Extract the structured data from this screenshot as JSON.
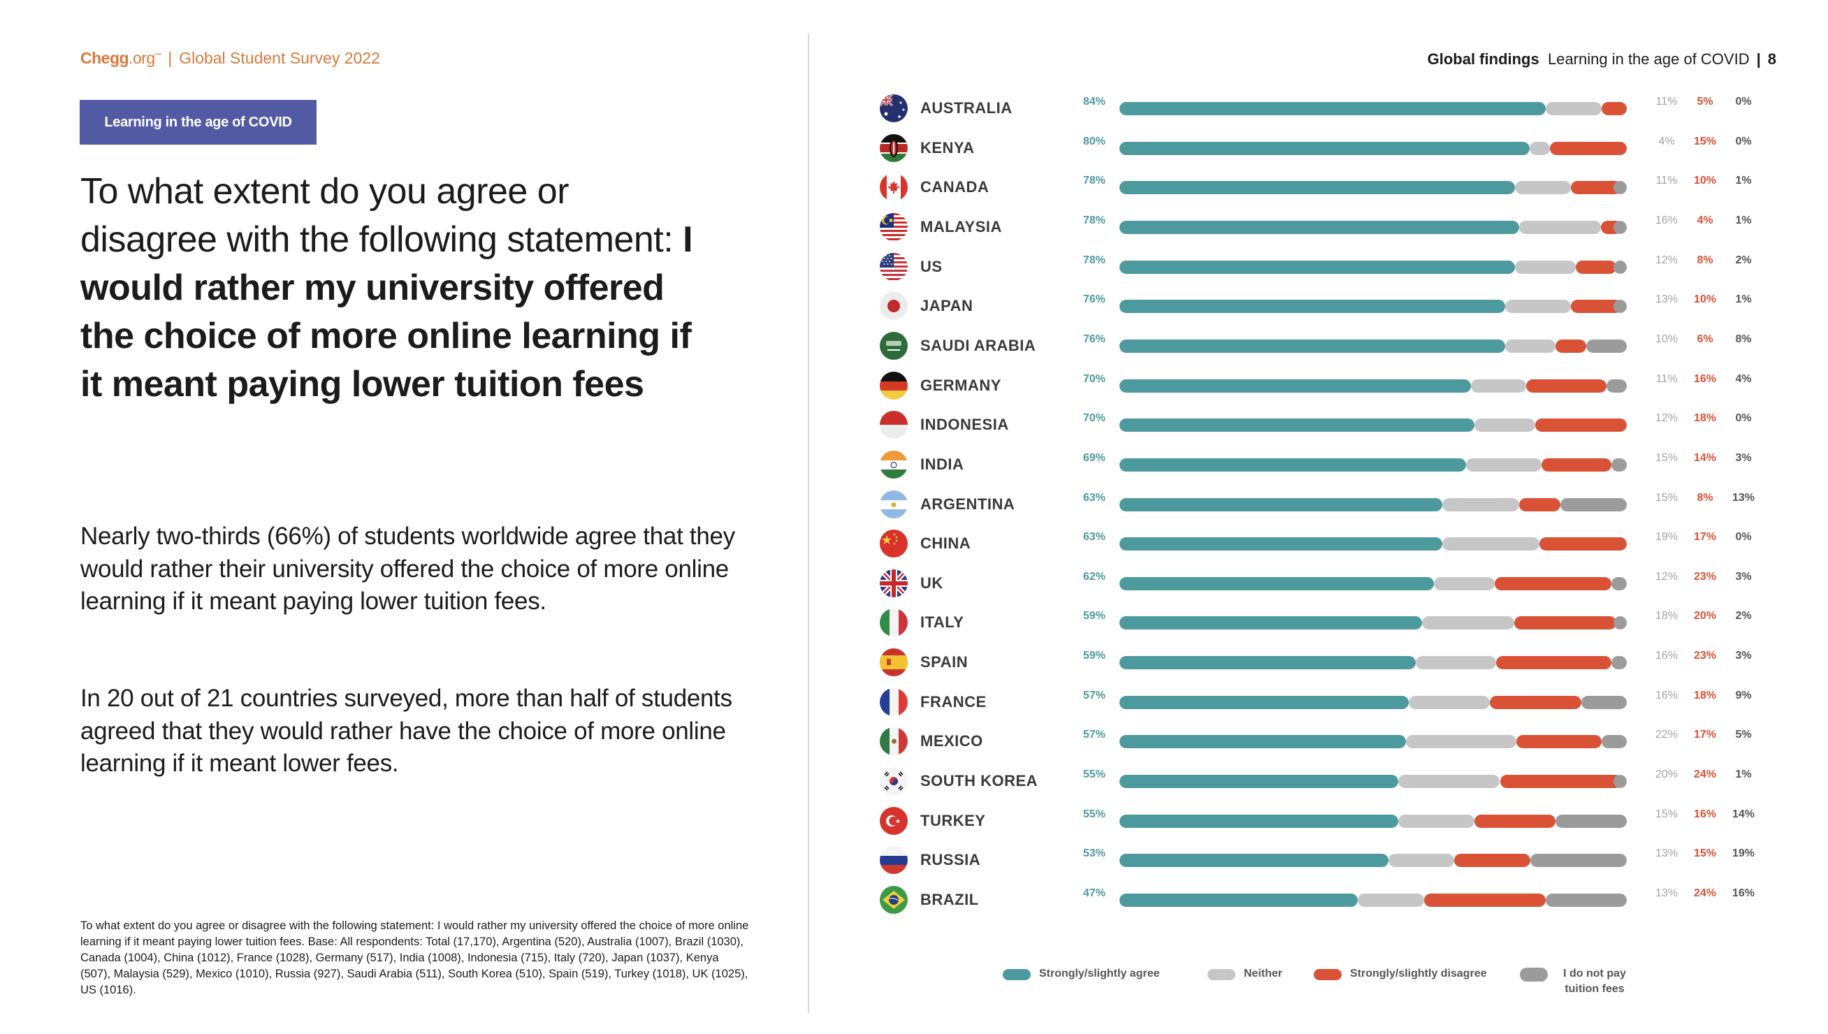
{
  "header_left": {
    "brand": "Chegg",
    "brand_suffix": ".org",
    "trademark": "™",
    "separator": "|",
    "title": "Global Student Survey 2022"
  },
  "section_tag": "Learning in the age of COVID",
  "heading": {
    "lead": "To what extent do you agree or disagree with the following statement: ",
    "emphasis": "I would rather my university offered the choice of more online learning if it meant paying lower tuition fees"
  },
  "paragraphs": [
    "Nearly two-thirds (66%) of students worldwide agree that they would rather their university offered the choice of more online learning if it meant paying lower tuition fees.",
    "In 20 out of 21 countries surveyed, more than half of students agreed that they would rather have the choice of more online learning if it meant lower fees."
  ],
  "footnote": "To what extent do you agree or disagree with the following statement: I would rather my university offered the choice of more online learning if it meant paying lower tuition fees. Base: All respondents: Total (17,170), Argentina (520), Australia (1007), Brazil (1030), Canada (1004), China (1012), France (1028), Germany (517), India (1008), Indonesia (715), Italy (720), Japan (1037), Kenya (507), Malaysia (529), Mexico (1010), Russia (927), Saudi Arabia (511), South Korea (510), Spain (519), Turkey (1018), UK (1025), US (1016).",
  "header_right": {
    "section": "Global findings",
    "subtitle": "Learning in the age of COVID",
    "separator": "|",
    "page_number": "8"
  },
  "colors": {
    "agree": "#4c9a9e",
    "neither": "#c6c6c6",
    "disagree": "#d95236",
    "notpay": "#9b9b9b",
    "brand_orange": "#d8793a",
    "tag_purple": "#525aa3"
  },
  "chart_data": {
    "type": "bar",
    "stacked": true,
    "orientation": "horizontal",
    "title": "",
    "xlabel": "",
    "ylabel": "",
    "xlim": [
      0,
      100
    ],
    "unit": "%",
    "legend_position": "bottom",
    "categories": [
      "AUSTRALIA",
      "KENYA",
      "CANADA",
      "MALAYSIA",
      "US",
      "JAPAN",
      "SAUDI ARABIA",
      "GERMANY",
      "INDONESIA",
      "INDIA",
      "ARGENTINA",
      "CHINA",
      "UK",
      "ITALY",
      "SPAIN",
      "FRANCE",
      "MEXICO",
      "SOUTH KOREA",
      "TURKEY",
      "RUSSIA",
      "BRAZIL"
    ],
    "flags": [
      "australia-flag-icon",
      "kenya-flag-icon",
      "canada-flag-icon",
      "malaysia-flag-icon",
      "us-flag-icon",
      "japan-flag-icon",
      "saudi-arabia-flag-icon",
      "germany-flag-icon",
      "indonesia-flag-icon",
      "india-flag-icon",
      "argentina-flag-icon",
      "china-flag-icon",
      "uk-flag-icon",
      "italy-flag-icon",
      "spain-flag-icon",
      "france-flag-icon",
      "mexico-flag-icon",
      "south-korea-flag-icon",
      "turkey-flag-icon",
      "russia-flag-icon",
      "brazil-flag-icon"
    ],
    "series": [
      {
        "key": "agree",
        "name": "Strongly/slightly agree",
        "values": [
          84,
          80,
          78,
          78,
          78,
          76,
          76,
          70,
          70,
          69,
          63,
          63,
          62,
          59,
          59,
          57,
          57,
          55,
          55,
          53,
          47
        ]
      },
      {
        "key": "neither",
        "name": "Neither",
        "values": [
          11,
          4,
          11,
          16,
          12,
          13,
          10,
          11,
          12,
          15,
          15,
          19,
          12,
          18,
          16,
          16,
          22,
          20,
          15,
          13,
          13
        ]
      },
      {
        "key": "disagree",
        "name": "Strongly/slightly disagree",
        "values": [
          5,
          15,
          10,
          4,
          8,
          10,
          6,
          16,
          18,
          14,
          8,
          17,
          23,
          20,
          23,
          18,
          17,
          24,
          16,
          15,
          24
        ]
      },
      {
        "key": "notpay",
        "name": "I do not pay tuition fees",
        "values": [
          0,
          0,
          1,
          1,
          2,
          1,
          8,
          4,
          0,
          3,
          13,
          0,
          3,
          2,
          3,
          9,
          5,
          1,
          14,
          19,
          16
        ]
      }
    ],
    "legend": [
      {
        "key": "agree",
        "label": "Strongly/slightly agree"
      },
      {
        "key": "neither",
        "label": "Neither"
      },
      {
        "key": "disagree",
        "label": "Strongly/slightly disagree"
      },
      {
        "key": "notpay",
        "label": "I do not pay tuition fees"
      }
    ]
  }
}
